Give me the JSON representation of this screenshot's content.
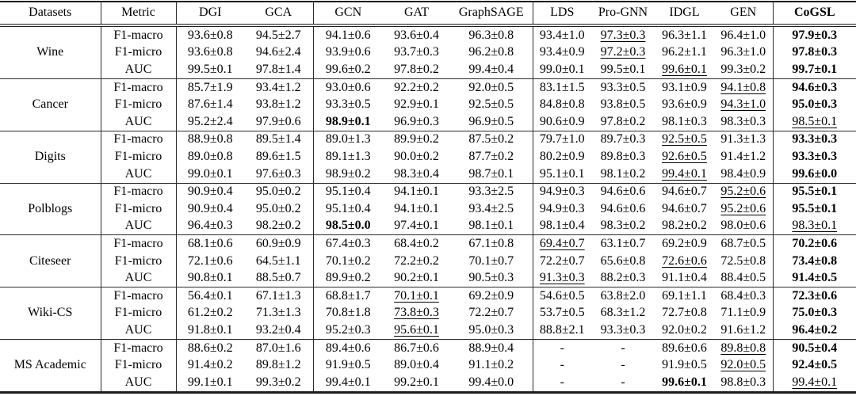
{
  "page": {
    "background_color": "#ffffff",
    "text_color": "#000000",
    "rule_color": "#1c1c1c"
  },
  "table": {
    "header": {
      "datasets_label": "Datasets",
      "metric_label": "Metric",
      "methods": [
        "DGI",
        "GCA",
        "GCN",
        "GAT",
        "GraphSAGE",
        "LDS",
        "Pro-GNN",
        "IDGL",
        "GEN",
        "CoGSL"
      ],
      "bold_method_index": 9
    },
    "groups": [
      {
        "dataset": "Wine",
        "rows": [
          {
            "metric": "F1-macro",
            "values": [
              "93.6±0.8",
              "94.5±2.7",
              "94.1±0.6",
              "93.6±0.4",
              "96.3±0.8",
              "93.4±1.0",
              "97.3±0.3",
              "96.3±1.1",
              "96.4±1.0",
              "97.9±0.3"
            ],
            "bold": [
              9
            ],
            "underline": [
              6
            ]
          },
          {
            "metric": "F1-micro",
            "values": [
              "93.6±0.8",
              "94.6±2.4",
              "93.9±0.6",
              "93.7±0.3",
              "96.2±0.8",
              "93.4±0.9",
              "97.2±0.3",
              "96.2±1.1",
              "96.3±1.0",
              "97.8±0.3"
            ],
            "bold": [
              9
            ],
            "underline": [
              6
            ]
          },
          {
            "metric": "AUC",
            "values": [
              "99.5±0.1",
              "97.8±1.4",
              "99.6±0.2",
              "97.8±0.2",
              "99.4±0.4",
              "99.0±0.1",
              "99.5±0.1",
              "99.6±0.1",
              "99.3±0.2",
              "99.7±0.1"
            ],
            "bold": [
              9
            ],
            "underline": [
              7
            ]
          }
        ]
      },
      {
        "dataset": "Cancer",
        "rows": [
          {
            "metric": "F1-macro",
            "values": [
              "85.7±1.9",
              "93.4±1.2",
              "93.0±0.6",
              "92.2±0.2",
              "92.0±0.5",
              "83.1±1.5",
              "93.3±0.5",
              "93.1±0.9",
              "94.1±0.8",
              "94.6±0.3"
            ],
            "bold": [
              9
            ],
            "underline": [
              8
            ]
          },
          {
            "metric": "F1-micro",
            "values": [
              "87.6±1.4",
              "93.8±1.2",
              "93.3±0.5",
              "92.9±0.1",
              "92.5±0.5",
              "84.8±0.8",
              "93.8±0.5",
              "93.6±0.9",
              "94.3±1.0",
              "95.0±0.3"
            ],
            "bold": [
              9
            ],
            "underline": [
              8
            ]
          },
          {
            "metric": "AUC",
            "values": [
              "95.2±2.4",
              "97.9±0.6",
              "98.9±0.1",
              "96.9±0.3",
              "96.9±0.5",
              "90.6±0.9",
              "97.8±0.2",
              "98.1±0.3",
              "98.3±0.3",
              "98.5±0.1"
            ],
            "bold": [
              2
            ],
            "underline": [
              9
            ]
          }
        ]
      },
      {
        "dataset": "Digits",
        "rows": [
          {
            "metric": "F1-macro",
            "values": [
              "88.9±0.8",
              "89.5±1.4",
              "89.0±1.3",
              "89.9±0.2",
              "87.5±0.2",
              "79.7±1.0",
              "89.7±0.3",
              "92.5±0.5",
              "91.3±1.3",
              "93.3±0.3"
            ],
            "bold": [
              9
            ],
            "underline": [
              7
            ]
          },
          {
            "metric": "F1-micro",
            "values": [
              "89.0±0.8",
              "89.6±1.5",
              "89.1±1.3",
              "90.0±0.2",
              "87.7±0.2",
              "80.2±0.9",
              "89.8±0.3",
              "92.6±0.5",
              "91.4±1.2",
              "93.3±0.3"
            ],
            "bold": [
              9
            ],
            "underline": [
              7
            ]
          },
          {
            "metric": "AUC",
            "values": [
              "99.0±0.1",
              "97.6±0.3",
              "98.9±0.2",
              "98.3±0.4",
              "98.7±0.1",
              "95.1±0.1",
              "98.1±0.2",
              "99.4±0.1",
              "98.4±0.9",
              "99.6±0.0"
            ],
            "bold": [
              9
            ],
            "underline": [
              7
            ]
          }
        ]
      },
      {
        "dataset": "Polblogs",
        "rows": [
          {
            "metric": "F1-macro",
            "values": [
              "90.9±0.4",
              "95.0±0.2",
              "95.1±0.4",
              "94.1±0.1",
              "93.3±2.5",
              "94.9±0.3",
              "94.6±0.6",
              "94.6±0.7",
              "95.2±0.6",
              "95.5±0.1"
            ],
            "bold": [
              9
            ],
            "underline": [
              8
            ]
          },
          {
            "metric": "F1-micro",
            "values": [
              "90.9±0.4",
              "95.0±0.2",
              "95.1±0.4",
              "94.1±0.1",
              "93.4±2.5",
              "94.9±0.3",
              "94.6±0.6",
              "94.6±0.7",
              "95.2±0.6",
              "95.5±0.1"
            ],
            "bold": [
              9
            ],
            "underline": [
              8
            ]
          },
          {
            "metric": "AUC",
            "values": [
              "96.4±0.3",
              "98.2±0.2",
              "98.5±0.0",
              "97.4±0.1",
              "98.1±0.1",
              "98.1±0.4",
              "98.3±0.2",
              "98.2±0.2",
              "98.0±0.6",
              "98.3±0.1"
            ],
            "bold": [
              2
            ],
            "underline": [
              9
            ]
          }
        ]
      },
      {
        "dataset": "Citeseer",
        "rows": [
          {
            "metric": "F1-macro",
            "values": [
              "68.1±0.6",
              "60.9±0.9",
              "67.4±0.3",
              "68.4±0.2",
              "67.1±0.8",
              "69.4±0.7",
              "63.1±0.7",
              "69.2±0.9",
              "68.7±0.5",
              "70.2±0.6"
            ],
            "bold": [
              9
            ],
            "underline": [
              5
            ]
          },
          {
            "metric": "F1-micro",
            "values": [
              "72.1±0.6",
              "64.5±1.1",
              "70.1±0.2",
              "72.2±0.2",
              "70.1±0.7",
              "72.2±0.7",
              "65.6±0.8",
              "72.6±0.6",
              "72.5±0.8",
              "73.4±0.8"
            ],
            "bold": [
              9
            ],
            "underline": [
              7
            ]
          },
          {
            "metric": "AUC",
            "values": [
              "90.8±0.1",
              "88.5±0.7",
              "89.9±0.2",
              "90.2±0.1",
              "90.5±0.3",
              "91.3±0.3",
              "88.2±0.3",
              "91.1±0.4",
              "88.4±0.5",
              "91.4±0.5"
            ],
            "bold": [
              9
            ],
            "underline": [
              5
            ]
          }
        ]
      },
      {
        "dataset": "Wiki-CS",
        "rows": [
          {
            "metric": "F1-macro",
            "values": [
              "56.4±0.1",
              "67.1±1.3",
              "68.8±1.7",
              "70.1±0.1",
              "69.2±0.9",
              "54.6±0.5",
              "63.8±2.0",
              "69.1±1.1",
              "68.4±0.3",
              "72.3±0.6"
            ],
            "bold": [
              9
            ],
            "underline": [
              3
            ]
          },
          {
            "metric": "F1-micro",
            "values": [
              "61.2±0.2",
              "71.3±1.3",
              "70.8±1.8",
              "73.8±0.3",
              "72.2±0.7",
              "53.7±0.5",
              "68.3±1.2",
              "72.7±0.8",
              "71.1±0.9",
              "75.0±0.3"
            ],
            "bold": [
              9
            ],
            "underline": [
              3
            ]
          },
          {
            "metric": "AUC",
            "values": [
              "91.8±0.1",
              "93.2±0.4",
              "95.2±0.3",
              "95.6±0.1",
              "95.0±0.3",
              "88.8±2.1",
              "93.3±0.3",
              "92.0±0.2",
              "91.6±1.2",
              "96.4±0.2"
            ],
            "bold": [
              9
            ],
            "underline": [
              3
            ]
          }
        ]
      },
      {
        "dataset": "MS Academic",
        "rows": [
          {
            "metric": "F1-macro",
            "values": [
              "88.6±0.2",
              "87.0±1.6",
              "89.4±0.6",
              "86.7±0.6",
              "88.9±0.4",
              "-",
              "-",
              "89.6±0.6",
              "89.8±0.8",
              "90.5±0.4"
            ],
            "bold": [
              9
            ],
            "underline": [
              8
            ]
          },
          {
            "metric": "F1-micro",
            "values": [
              "91.4±0.2",
              "89.8±1.2",
              "91.9±0.5",
              "89.0±0.4",
              "91.1±0.2",
              "-",
              "-",
              "91.9±0.5",
              "92.0±0.5",
              "92.4±0.5"
            ],
            "bold": [
              9
            ],
            "underline": [
              8
            ]
          },
          {
            "metric": "AUC",
            "values": [
              "99.1±0.1",
              "99.3±0.2",
              "99.4±0.1",
              "99.2±0.1",
              "99.4±0.0",
              "-",
              "-",
              "99.6±0.1",
              "98.8±0.3",
              "99.4±0.1"
            ],
            "bold": [
              7
            ],
            "underline": [
              9
            ]
          }
        ]
      }
    ]
  }
}
